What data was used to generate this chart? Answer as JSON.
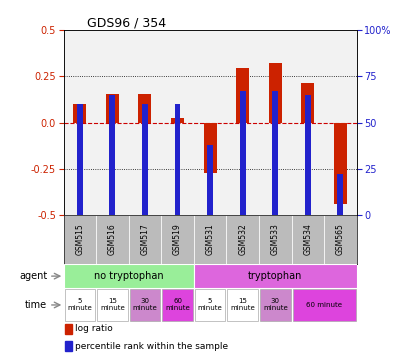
{
  "title": "GDS96 / 354",
  "samples": [
    "GSM515",
    "GSM516",
    "GSM517",
    "GSM519",
    "GSM531",
    "GSM532",
    "GSM533",
    "GSM534",
    "GSM565"
  ],
  "log_ratio": [
    0.1,
    0.155,
    0.155,
    0.025,
    -0.27,
    0.295,
    0.325,
    0.215,
    -0.44
  ],
  "percentile_rank": [
    60,
    65,
    60,
    60,
    38,
    67,
    67,
    65,
    22
  ],
  "ylim_left": [
    -0.5,
    0.5
  ],
  "ylim_right": [
    0,
    100
  ],
  "yticks_left": [
    -0.5,
    -0.25,
    0.0,
    0.25,
    0.5
  ],
  "yticks_right": [
    0,
    25,
    50,
    75,
    100
  ],
  "red_color": "#cc2200",
  "blue_color": "#2222cc",
  "zero_line_color": "#cc0000",
  "plot_bg": "#f2f2f2",
  "agent_color_no": "#99ee99",
  "agent_color_yes": "#dd66dd",
  "time_colors_no": [
    "#ffffff",
    "#ffffff",
    "#cc99cc",
    "#dd55dd"
  ],
  "time_colors_yes": [
    "#ffffff",
    "#ffffff",
    "#cc99cc",
    "#dd55dd"
  ],
  "sample_bg": "#bbbbbb",
  "legend_red": "log ratio",
  "legend_blue": "percentile rank within the sample"
}
